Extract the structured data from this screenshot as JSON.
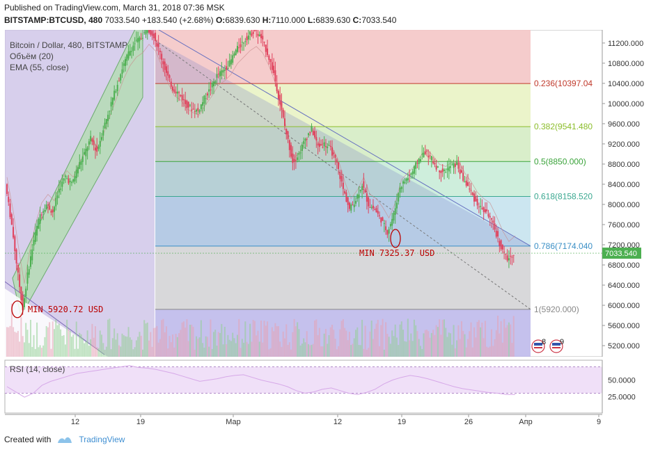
{
  "header": {
    "published": "Published on TradingView.com, March 31, 2018 07:36 MSK",
    "symbol": "BITSTAMP:BTCUSD, 480",
    "last": "7033.540",
    "change": "+183.540 (+2.68%)",
    "o_label": "O:",
    "o": "6839.630",
    "h_label": "H:",
    "h": "7110.000",
    "l_label": "L:",
    "l": "6839.630",
    "c_label": "C:",
    "c": "7033.540"
  },
  "indicators": {
    "title": "Bitcoin / Dollar, 480, BITSTAMP",
    "volume": "Объём (20)",
    "ema": "EMA (55, close)"
  },
  "annotations": {
    "min1": "MIN 5920.72 USD",
    "min2": "MIN 7325.37 USD"
  },
  "events": {
    "flag1": "8",
    "flag2": "9"
  },
  "rsi": {
    "label": "RSI (14, close)"
  },
  "footer": {
    "created": "Created with",
    "brand": "TradingView"
  },
  "colors": {
    "up": "#4caf50",
    "down": "#e0415c",
    "fib_0236": "#c0392b",
    "fib_0382": "#8bbd2a",
    "fib_05": "#3aa33a",
    "fib_0618": "#3aa890",
    "fib_0786": "#3a8fc6",
    "fib_1": "#888888",
    "last_price_bg": "#4caf50"
  },
  "chart_data": {
    "type": "candlestick",
    "price_axis": {
      "ticks": [
        11200,
        10800,
        10400,
        10000,
        9600,
        9200,
        8800,
        8400,
        8000,
        7600,
        7200,
        6800,
        6400,
        6000,
        5600,
        5200
      ],
      "labels": [
        "11200.000",
        "10800.000",
        "10400.000",
        "10000.000",
        "9600.000",
        "9200.000",
        "8800.000",
        "8400.000",
        "8000.000",
        "7600.000",
        "7200.000",
        "6800.000",
        "6400.000",
        "6000.000",
        "5600.000",
        "5200.000"
      ],
      "range": [
        4980,
        11460
      ]
    },
    "time_axis": {
      "labels": [
        "12",
        "19",
        "Мар",
        "12",
        "19",
        "26",
        "Апр",
        "9"
      ]
    },
    "last_price": "7033.540",
    "fibonacci": [
      {
        "label": "0.236(10397.04",
        "value": 10397.04
      },
      {
        "label": "0.382(9541.480",
        "value": 9541.48
      },
      {
        "label": "0.5(8850.000)",
        "value": 8850.0
      },
      {
        "label": "0.618(8158.520",
        "value": 8158.52
      },
      {
        "label": "0.786(7174.040",
        "value": 7174.04
      },
      {
        "label": "1(5920.000)",
        "value": 5920.0
      }
    ],
    "price_path": [
      [
        0,
        8400
      ],
      [
        4,
        7600
      ],
      [
        8,
        6600
      ],
      [
        11,
        5920
      ],
      [
        14,
        6600
      ],
      [
        18,
        7300
      ],
      [
        22,
        7800
      ],
      [
        26,
        8000
      ],
      [
        30,
        7850
      ],
      [
        34,
        8300
      ],
      [
        38,
        8550
      ],
      [
        42,
        8400
      ],
      [
        46,
        8750
      ],
      [
        50,
        9000
      ],
      [
        54,
        9300
      ],
      [
        58,
        9050
      ],
      [
        62,
        9500
      ],
      [
        66,
        9900
      ],
      [
        70,
        10300
      ],
      [
        74,
        10700
      ],
      [
        78,
        11000
      ],
      [
        82,
        11200
      ],
      [
        86,
        11300
      ],
      [
        90,
        11500
      ],
      [
        94,
        11350
      ],
      [
        98,
        11000
      ],
      [
        102,
        10600
      ],
      [
        106,
        10300
      ],
      [
        110,
        10200
      ],
      [
        114,
        10000
      ],
      [
        118,
        9900
      ],
      [
        122,
        9850
      ],
      [
        126,
        10100
      ],
      [
        130,
        10300
      ],
      [
        134,
        10550
      ],
      [
        138,
        10650
      ],
      [
        142,
        10800
      ],
      [
        146,
        11050
      ],
      [
        150,
        11200
      ],
      [
        154,
        11350
      ],
      [
        158,
        11450
      ],
      [
        162,
        11300
      ],
      [
        166,
        11000
      ],
      [
        170,
        10600
      ],
      [
        174,
        10000
      ],
      [
        178,
        9400
      ],
      [
        182,
        8850
      ],
      [
        186,
        9000
      ],
      [
        190,
        9300
      ],
      [
        194,
        9500
      ],
      [
        198,
        9150
      ],
      [
        202,
        9200
      ],
      [
        206,
        9100
      ],
      [
        210,
        8800
      ],
      [
        214,
        8300
      ],
      [
        218,
        7900
      ],
      [
        222,
        8100
      ],
      [
        226,
        8400
      ],
      [
        230,
        8000
      ],
      [
        234,
        7900
      ],
      [
        238,
        7700
      ],
      [
        242,
        7450
      ],
      [
        246,
        7800
      ],
      [
        250,
        8350
      ],
      [
        254,
        8500
      ],
      [
        258,
        8650
      ],
      [
        262,
        8900
      ],
      [
        266,
        9050
      ],
      [
        270,
        8900
      ],
      [
        274,
        8700
      ],
      [
        278,
        8650
      ],
      [
        282,
        8750
      ],
      [
        286,
        8800
      ],
      [
        290,
        8500
      ],
      [
        294,
        8300
      ],
      [
        298,
        8050
      ],
      [
        302,
        7900
      ],
      [
        306,
        7800
      ],
      [
        310,
        7500
      ],
      [
        314,
        7150
      ],
      [
        318,
        6900
      ],
      [
        322,
        7033
      ]
    ],
    "min_points": [
      {
        "label": "MIN 5920.72 USD",
        "value": 5920.72
      },
      {
        "label": "MIN 7325.37 USD",
        "value": 7325.37
      }
    ],
    "rsi_axis": {
      "labels": [
        "50.0000",
        "25.0000"
      ],
      "values": [
        50,
        25
      ],
      "range": [
        0,
        80
      ]
    },
    "rsi_values": [
      40,
      32,
      24,
      30,
      42,
      48,
      52,
      56,
      60,
      62,
      64,
      66,
      68,
      70,
      72,
      69,
      68,
      66,
      63,
      60,
      56,
      52,
      48,
      50,
      52,
      55,
      57,
      58,
      54,
      50,
      47,
      44,
      40,
      34,
      30,
      32,
      36,
      38,
      34,
      30,
      28,
      31,
      36,
      44,
      50,
      54,
      57,
      55,
      52,
      48,
      44,
      40,
      37,
      35,
      33,
      31,
      30,
      28,
      28
    ]
  }
}
